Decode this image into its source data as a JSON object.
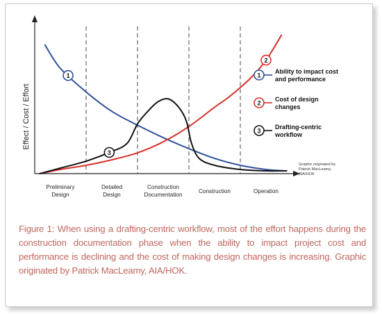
{
  "caption": "Figure 1: When using a drafting-centric workflow, most of the effort happens during the construction documentation phase when the ability to impact project cost and performance is declining and the cost of making design changes is increasing. Graphic originated by Patrick MacLeamy, AIA/HOK.",
  "chart_data": {
    "type": "line",
    "title": "",
    "ylabel": "Effect / Cost / Effort",
    "xlabel": "",
    "xlim": [
      0,
      5
    ],
    "ylim": [
      0,
      100
    ],
    "phases": [
      "Preliminary Design",
      "Detailed Design",
      "Construction Documentation",
      "Construction",
      "Operation"
    ],
    "phase_boundaries": [
      1,
      2,
      3,
      4
    ],
    "grid": false,
    "legend_position": "right",
    "series": [
      {
        "name": "Ability to impact cost and performance",
        "marker": "1",
        "color": "#2f4f9a",
        "x": [
          0.2,
          0.5,
          1.0,
          1.5,
          2.0,
          2.5,
          3.0,
          3.5,
          4.0,
          4.5,
          4.9
        ],
        "y": [
          93,
          76,
          59,
          45,
          35,
          26,
          18,
          11,
          6,
          3,
          2
        ]
      },
      {
        "name": "Cost of design changes",
        "marker": "2",
        "color": "#d9302a",
        "x": [
          0.1,
          0.5,
          1.0,
          1.5,
          2.0,
          2.5,
          3.0,
          3.5,
          3.8,
          4.2,
          4.5,
          4.8
        ],
        "y": [
          0,
          3,
          6,
          10,
          15,
          23,
          34,
          48,
          56,
          69,
          82,
          100
        ]
      },
      {
        "name": "Drafting-centric workflow",
        "marker": "3",
        "color": "#111111",
        "x": [
          0.1,
          0.5,
          1.0,
          1.5,
          1.8,
          2.0,
          2.2,
          2.4,
          2.6,
          2.8,
          2.95,
          3.05,
          3.2,
          3.5,
          4.0,
          4.5,
          4.9
        ],
        "y": [
          0,
          4,
          9,
          16,
          22,
          36,
          45,
          52,
          54,
          48,
          38,
          22,
          11,
          6,
          3,
          2,
          2
        ]
      }
    ],
    "annotations": [
      {
        "text": "1",
        "series": 0,
        "x": 0.65
      },
      {
        "text": "2",
        "series": 1,
        "x": 4.5
      },
      {
        "text": "3",
        "series": 2,
        "x": 1.45
      }
    ],
    "credit": [
      "Graphic originated by",
      "Patrick MacLeamy,",
      "AIA/HOK"
    ]
  }
}
